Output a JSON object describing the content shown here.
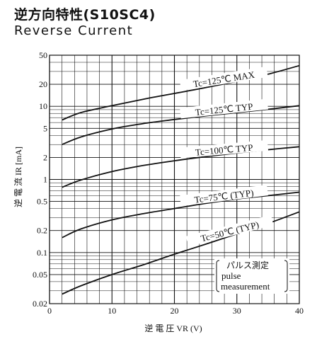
{
  "title": "逆方向特性(S10SC4)",
  "subtitle": "Reverse Current",
  "chart_data": {
    "type": "line",
    "xlabel": "逆 電 圧 VR (V)",
    "ylabel": "逆 電 流 IR [mA]",
    "x_scale": "linear",
    "y_scale": "log",
    "xlim": [
      0,
      40
    ],
    "ylim": [
      0.02,
      50
    ],
    "x_ticks": [
      "0",
      "10",
      "20",
      "30",
      "40"
    ],
    "y_ticks": [
      {
        "value": 50,
        "label": "50"
      },
      {
        "value": 20,
        "label": "20"
      },
      {
        "value": 10,
        "label": "10"
      },
      {
        "value": 5,
        "label": "5"
      },
      {
        "value": 2,
        "label": "2"
      },
      {
        "value": 1,
        "label": "1"
      },
      {
        "value": 0.5,
        "label": "0.5"
      },
      {
        "value": 0.2,
        "label": "0.2"
      },
      {
        "value": 0.1,
        "label": "0.1"
      },
      {
        "value": 0.05,
        "label": "0.05"
      },
      {
        "value": 0.02,
        "label": "0.02"
      }
    ],
    "grid": true,
    "series": [
      {
        "name": "Tc=125℃ MAX",
        "x": [
          2,
          5,
          10,
          15,
          20,
          25,
          30,
          35,
          40
        ],
        "y": [
          6.5,
          8.2,
          10.2,
          12.5,
          15.0,
          18.0,
          22.0,
          27.5,
          36.0
        ]
      },
      {
        "name": "Tc=125℃ TYP",
        "x": [
          2,
          5,
          10,
          15,
          20,
          25,
          30,
          35,
          40
        ],
        "y": [
          3.0,
          3.8,
          4.9,
          5.8,
          6.6,
          7.4,
          8.2,
          9.1,
          10.2
        ]
      },
      {
        "name": "Tc=100℃ TYP",
        "x": [
          2,
          5,
          10,
          15,
          20,
          25,
          30,
          35,
          40
        ],
        "y": [
          0.78,
          0.98,
          1.28,
          1.55,
          1.8,
          2.05,
          2.3,
          2.55,
          2.8
        ]
      },
      {
        "name": "Tc=75℃ (TYP)",
        "x": [
          2,
          5,
          10,
          15,
          20,
          25,
          30,
          35,
          40
        ],
        "y": [
          0.16,
          0.21,
          0.28,
          0.34,
          0.4,
          0.47,
          0.54,
          0.6,
          0.67
        ]
      },
      {
        "name": "Tc=50℃ (TYP)",
        "x": [
          2,
          5,
          10,
          15,
          20,
          25,
          30,
          35,
          40
        ],
        "y": [
          0.027,
          0.035,
          0.05,
          0.068,
          0.095,
          0.13,
          0.18,
          0.25,
          0.36
        ]
      }
    ]
  },
  "note": {
    "line1": "パルス測定",
    "line2": "pulse",
    "line3": "measurement"
  }
}
